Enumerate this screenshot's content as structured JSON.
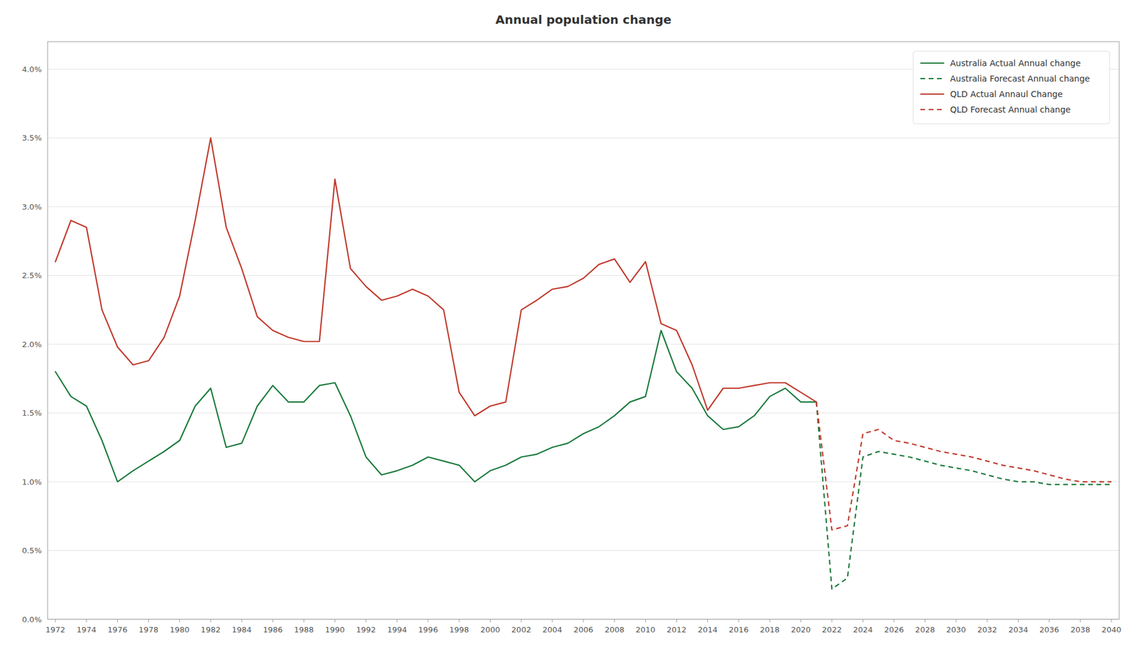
{
  "chart_data": {
    "type": "line",
    "title": "Annual population change",
    "xlim": [
      1971.5,
      2040.5
    ],
    "xticks": [
      1972,
      1974,
      1976,
      1978,
      1980,
      1982,
      1984,
      1986,
      1988,
      1990,
      1992,
      1994,
      1996,
      1998,
      2000,
      2002,
      2004,
      2006,
      2008,
      2010,
      2012,
      2014,
      2016,
      2018,
      2020,
      2022,
      2024,
      2026,
      2028,
      2030,
      2032,
      2034,
      2036,
      2038,
      2040
    ],
    "ylim": [
      0.0,
      0.042
    ],
    "yticks": [
      {
        "value": 0.0,
        "label": "0.0%"
      },
      {
        "value": 0.005,
        "label": "0.5%"
      },
      {
        "value": 0.01,
        "label": "1.0%"
      },
      {
        "value": 0.015,
        "label": "1.5%"
      },
      {
        "value": 0.02,
        "label": "2.0%"
      },
      {
        "value": 0.025,
        "label": "2.5%"
      },
      {
        "value": 0.03,
        "label": "3.0%"
      },
      {
        "value": 0.035,
        "label": "3.5%"
      },
      {
        "value": 0.04,
        "label": "4.0%"
      }
    ],
    "grid": true,
    "legend": "upper right",
    "series": [
      {
        "name": "Australia Actual Annual change",
        "color": "#1a7a3c",
        "line_style": "solid",
        "x": [
          1972,
          1973,
          1974,
          1975,
          1976,
          1977,
          1978,
          1979,
          1980,
          1981,
          1982,
          1983,
          1984,
          1985,
          1986,
          1987,
          1988,
          1989,
          1990,
          1991,
          1992,
          1993,
          1994,
          1995,
          1996,
          1997,
          1998,
          1999,
          2000,
          2001,
          2002,
          2003,
          2004,
          2005,
          2006,
          2007,
          2008,
          2009,
          2010,
          2011,
          2012,
          2013,
          2014,
          2015,
          2016,
          2017,
          2018,
          2019,
          2020,
          2021
        ],
        "values": [
          0.018,
          0.0162,
          0.0155,
          0.013,
          0.01,
          0.0108,
          0.0115,
          0.0122,
          0.013,
          0.0155,
          0.0168,
          0.0125,
          0.0128,
          0.0155,
          0.017,
          0.0158,
          0.0158,
          0.017,
          0.0172,
          0.0148,
          0.0118,
          0.0105,
          0.0108,
          0.0112,
          0.0118,
          0.0115,
          0.0112,
          0.01,
          0.0108,
          0.0112,
          0.0118,
          0.012,
          0.0125,
          0.0128,
          0.0135,
          0.014,
          0.0148,
          0.0158,
          0.0162,
          0.021,
          0.018,
          0.0168,
          0.0148,
          0.0138,
          0.014,
          0.0148,
          0.0162,
          0.0168,
          0.0158,
          0.0158
        ]
      },
      {
        "name": "Australia Forecast Annual change",
        "color": "#1a7a3c",
        "line_style": "dashed",
        "x": [
          2021,
          2022,
          2023,
          2024,
          2025,
          2026,
          2027,
          2028,
          2029,
          2030,
          2031,
          2032,
          2033,
          2034,
          2035,
          2036,
          2037,
          2038,
          2039,
          2040
        ],
        "values": [
          0.0158,
          0.0022,
          0.003,
          0.0118,
          0.0122,
          0.012,
          0.0118,
          0.0115,
          0.0112,
          0.011,
          0.0108,
          0.0105,
          0.0102,
          0.01,
          0.01,
          0.0098,
          0.0098,
          0.0098,
          0.0098,
          0.0098
        ]
      },
      {
        "name": "QLD Actual Annaul Change",
        "color": "#c0392b",
        "line_style": "solid",
        "x": [
          1972,
          1973,
          1974,
          1975,
          1976,
          1977,
          1978,
          1979,
          1980,
          1981,
          1982,
          1983,
          1984,
          1985,
          1986,
          1987,
          1988,
          1989,
          1990,
          1991,
          1992,
          1993,
          1994,
          1995,
          1996,
          1997,
          1998,
          1999,
          2000,
          2001,
          2002,
          2003,
          2004,
          2005,
          2006,
          2007,
          2008,
          2009,
          2010,
          2011,
          2012,
          2013,
          2014,
          2015,
          2016,
          2017,
          2018,
          2019,
          2020,
          2021
        ],
        "values": [
          0.026,
          0.029,
          0.0285,
          0.0225,
          0.0198,
          0.0185,
          0.0188,
          0.0205,
          0.0235,
          0.029,
          0.035,
          0.0285,
          0.0255,
          0.022,
          0.021,
          0.0205,
          0.0202,
          0.0202,
          0.032,
          0.0255,
          0.0242,
          0.0232,
          0.0235,
          0.024,
          0.0235,
          0.0225,
          0.0165,
          0.0148,
          0.0155,
          0.0158,
          0.0225,
          0.0232,
          0.024,
          0.0242,
          0.0248,
          0.0258,
          0.0262,
          0.0245,
          0.026,
          0.0215,
          0.021,
          0.0185,
          0.0152,
          0.0168,
          0.0168,
          0.017,
          0.0172,
          0.0172,
          0.0165,
          0.0158
        ]
      },
      {
        "name": "QLD Forecast Annual change",
        "color": "#c0392b",
        "line_style": "dashed",
        "x": [
          2021,
          2022,
          2023,
          2024,
          2025,
          2026,
          2027,
          2028,
          2029,
          2030,
          2031,
          2032,
          2033,
          2034,
          2035,
          2036,
          2037,
          2038,
          2039,
          2040
        ],
        "values": [
          0.0158,
          0.0065,
          0.0068,
          0.0135,
          0.0138,
          0.013,
          0.0128,
          0.0125,
          0.0122,
          0.012,
          0.0118,
          0.0115,
          0.0112,
          0.011,
          0.0108,
          0.0105,
          0.0102,
          0.01,
          0.01,
          0.01
        ]
      }
    ]
  }
}
